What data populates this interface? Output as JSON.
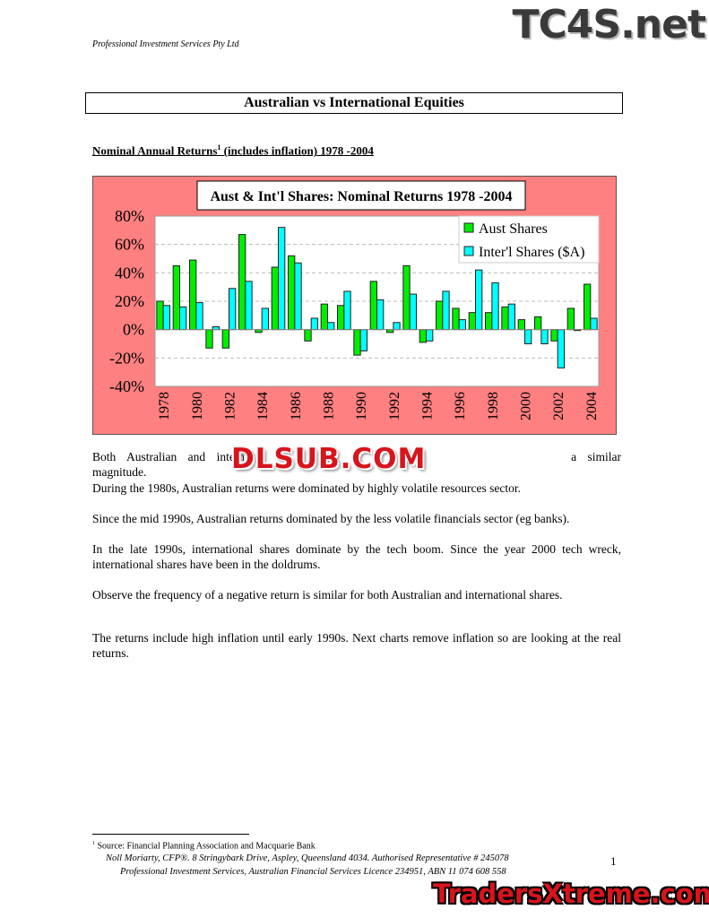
{
  "header": {
    "company": "Professional Investment Services Pty Ltd"
  },
  "watermarks": [
    "TC4S.net",
    "DLSUB.COM",
    "TradersXtreme.com"
  ],
  "document": {
    "title": "Australian  vs  International Equities",
    "section_heading": "Nominal Annual Returns",
    "section_heading_sup": "1",
    "section_heading_rest": " (includes inflation) 1978 -2004",
    "paragraphs": [
      "Both Australian and interna",
      "a similar magnitude.",
      "During the 1980s, Australian returns were dominated by highly volatile resources sector.",
      "Since the mid 1990s, Australian returns dominated by the less volatile financials sector (eg banks).",
      "In the late 1990s, international shares dominate by the tech boom. Since the year 2000 tech wreck, international shares have been in the doldrums.",
      "Observe the frequency of a negative return is similar for both Australian and international shares.",
      "The returns include high inflation until early 1990s. Next charts remove inflation so are looking at the real returns."
    ]
  },
  "footnote": {
    "mark": "1",
    "text": "Source: Financial Planning Association and Macquarie Bank"
  },
  "footer": {
    "line1": "Noll Moriarty, CFP®.  8 Stringybark Drive, Aspley, Queensland  4034.   Authorised Representative  # 245078",
    "line2": "Professional Investment Services, Australian Financial Services Licence 234951, ABN 11 074 608 558",
    "page_number": "1"
  },
  "chart_data": {
    "type": "bar",
    "title": "Aust & Int'l Shares:   Nominal Returns 1978 -2004",
    "categories": [
      "1978",
      "1979",
      "1980",
      "1981",
      "1982",
      "1983",
      "1984",
      "1985",
      "1986",
      "1987",
      "1988",
      "1989",
      "1990",
      "1991",
      "1992",
      "1993",
      "1994",
      "1995",
      "1996",
      "1997",
      "1998",
      "1999",
      "2000",
      "2001",
      "2002",
      "2003",
      "2004"
    ],
    "tick_labels_x": [
      "1978",
      "1980",
      "1982",
      "1984",
      "1986",
      "1988",
      "1990",
      "1992",
      "1994",
      "1996",
      "1998",
      "2000",
      "2002",
      "2004"
    ],
    "tick_labels_y": [
      "80%",
      "60%",
      "40%",
      "20%",
      "0%",
      "-20%",
      "-40%"
    ],
    "ylim": [
      -40,
      80
    ],
    "grid": true,
    "legend": "top-right",
    "series": [
      {
        "name": "Aust Shares",
        "color": "#00ee00",
        "values": [
          20,
          45,
          49,
          -13,
          -13,
          67,
          -2,
          44,
          52,
          -8,
          18,
          17,
          -18,
          34,
          -2,
          45,
          -9,
          20,
          15,
          12,
          12,
          16,
          7,
          9,
          -8,
          15,
          32
        ]
      },
      {
        "name": "Inter'l Shares ($A)",
        "color": "#00ffff",
        "values": [
          17,
          16,
          19,
          2,
          29,
          34,
          15,
          72,
          47,
          8,
          5,
          27,
          -15,
          21,
          5,
          25,
          -8,
          27,
          7,
          42,
          33,
          18,
          -10,
          -10,
          -27,
          -0.5,
          8
        ]
      }
    ],
    "colors": {
      "background": "#ff8080",
      "plot": "#ffffff"
    }
  }
}
